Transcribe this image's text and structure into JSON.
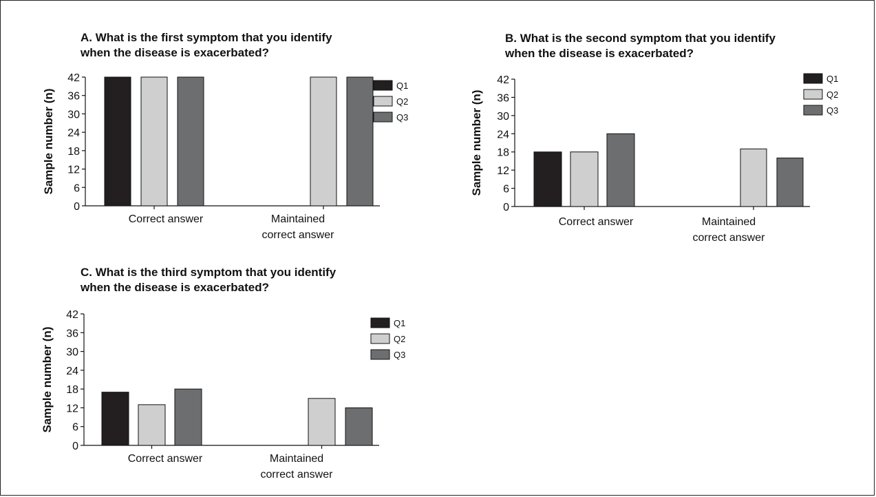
{
  "chart_data": [
    {
      "id": "A",
      "type": "bar",
      "title_lines": [
        "A. What is the first symptom that you identify",
        "when the disease is exacerbated?"
      ],
      "ylabel": "Sample number (n)",
      "ylim": [
        0,
        42
      ],
      "yticks": [
        0,
        6,
        12,
        18,
        24,
        30,
        36,
        42
      ],
      "categories": [
        [
          "Correct answer"
        ],
        [
          "Maintained",
          "correct answer"
        ]
      ],
      "series": [
        {
          "name": "Q1",
          "color": "#231f20",
          "values": [
            42,
            0
          ]
        },
        {
          "name": "Q2",
          "color": "#cfcfcf",
          "values": [
            42,
            42
          ]
        },
        {
          "name": "Q3",
          "color": "#6d6e70",
          "values": [
            42,
            42
          ]
        }
      ],
      "legend": "right"
    },
    {
      "id": "B",
      "type": "bar",
      "title_lines": [
        "B. What is the second symptom that you identify",
        "when the disease is exacerbated?"
      ],
      "ylabel": "Sample number (n)",
      "ylim": [
        0,
        42
      ],
      "yticks": [
        0,
        6,
        12,
        18,
        24,
        30,
        36,
        42
      ],
      "categories": [
        [
          "Correct answer"
        ],
        [
          "Maintained",
          "correct answer"
        ]
      ],
      "series": [
        {
          "name": "Q1",
          "color": "#231f20",
          "values": [
            18,
            0
          ]
        },
        {
          "name": "Q2",
          "color": "#cfcfcf",
          "values": [
            18,
            19
          ]
        },
        {
          "name": "Q3",
          "color": "#6d6e70",
          "values": [
            24,
            16
          ]
        }
      ],
      "legend": "right"
    },
    {
      "id": "C",
      "type": "bar",
      "title_lines": [
        "C. What is the third symptom that you identify",
        "when the disease is exacerbated?"
      ],
      "ylabel": "Sample number (n)",
      "ylim": [
        0,
        42
      ],
      "yticks": [
        0,
        6,
        12,
        18,
        24,
        30,
        36,
        42
      ],
      "categories": [
        [
          "Correct answer"
        ],
        [
          "Maintained",
          "correct answer"
        ]
      ],
      "series": [
        {
          "name": "Q1",
          "color": "#231f20",
          "values": [
            17,
            0
          ]
        },
        {
          "name": "Q2",
          "color": "#cfcfcf",
          "values": [
            13,
            15
          ]
        },
        {
          "name": "Q3",
          "color": "#6d6e70",
          "values": [
            18,
            12
          ]
        }
      ],
      "legend": "right"
    }
  ]
}
